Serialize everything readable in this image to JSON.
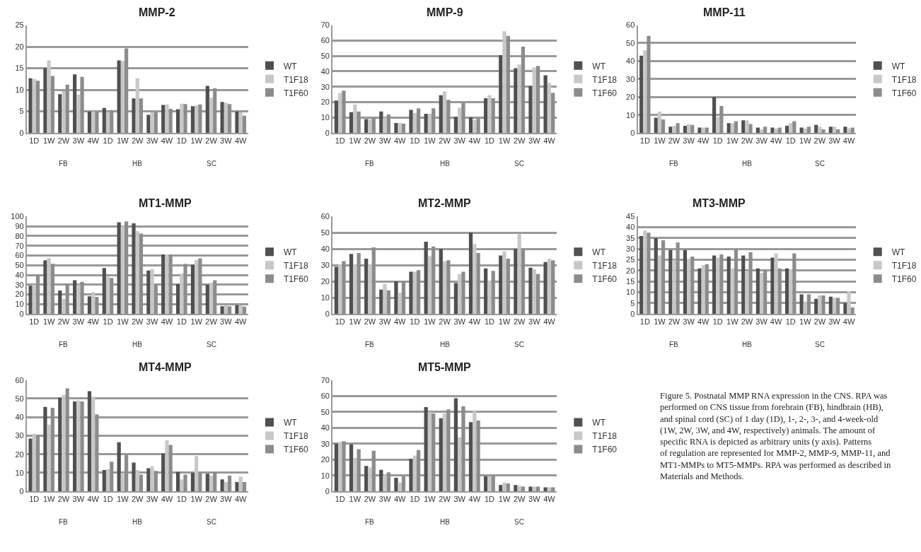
{
  "chart_data": [
    {
      "type": "bar",
      "title": "MMP-2",
      "categories": [
        "1D",
        "1W",
        "2W",
        "3W",
        "4W",
        "1D",
        "1W",
        "2W",
        "3W",
        "4W",
        "1D",
        "1W",
        "2W",
        "3W",
        "4W"
      ],
      "annotations": [
        "FB",
        "HB",
        "SC"
      ],
      "ylim": [
        0,
        25
      ],
      "yticks": [
        0,
        5,
        10,
        15,
        20,
        25
      ],
      "grid": "y",
      "legend": "right",
      "series": [
        {
          "name": "WT",
          "color": "#505050",
          "values": [
            12.7,
            15,
            9,
            13.6,
            5,
            5.8,
            16.8,
            8,
            4.2,
            6.5,
            5.5,
            6.2,
            10.9,
            7.2,
            5
          ]
        },
        {
          "name": "T1F18",
          "color": "#c8c8c8",
          "values": [
            12.5,
            16.8,
            9.7,
            8.9,
            5,
            4.8,
            16.7,
            12.7,
            4.8,
            6.6,
            6.8,
            6.4,
            8.2,
            7,
            4.8
          ]
        },
        {
          "name": "T1F60",
          "color": "#8c8c8c",
          "values": [
            12.1,
            13.2,
            11.2,
            13,
            5,
            5.3,
            19.6,
            8,
            4.8,
            5.6,
            6.7,
            6.6,
            10.4,
            6.7,
            4
          ]
        }
      ]
    },
    {
      "type": "bar",
      "title": "MMP-9",
      "categories": [
        "1D",
        "1W",
        "2W",
        "3W",
        "4W",
        "1D",
        "1W",
        "2W",
        "3W",
        "4W",
        "1D",
        "1W",
        "2W",
        "3W",
        "4W"
      ],
      "annotations": [
        "FB",
        "HB",
        "SC"
      ],
      "ylim": [
        0,
        70
      ],
      "yticks": [
        0,
        10,
        20,
        30,
        40,
        50,
        60,
        70
      ],
      "grid": "y",
      "legend": "right",
      "series": [
        {
          "name": "WT",
          "color": "#505050",
          "values": [
            21,
            13.5,
            9,
            14,
            6.5,
            15,
            12.5,
            24.5,
            10.5,
            10,
            22.5,
            50.5,
            42,
            30.5,
            37.5
          ]
        },
        {
          "name": "T1F18",
          "color": "#c8c8c8",
          "values": [
            26,
            18.5,
            9,
            10,
            6.5,
            13,
            12.5,
            27,
            16.5,
            8.5,
            24.5,
            66,
            44.5,
            42.5,
            32.5
          ]
        },
        {
          "name": "T1F60",
          "color": "#8c8c8c",
          "values": [
            27.5,
            14,
            10,
            12,
            6,
            16,
            16,
            21.5,
            19.5,
            10,
            22.5,
            63,
            56,
            43.5,
            26
          ]
        }
      ]
    },
    {
      "type": "bar",
      "title": "MMP-11",
      "categories": [
        "1D",
        "1W",
        "2W",
        "3W",
        "4W",
        "1D",
        "1W",
        "2W",
        "3W",
        "4W",
        "1D",
        "1W",
        "2W",
        "3W",
        "4W"
      ],
      "annotations": [
        "FB",
        "HB",
        "SC"
      ],
      "ylim": [
        0,
        60
      ],
      "yticks": [
        0,
        10,
        20,
        30,
        40,
        50,
        60
      ],
      "grid": "y",
      "legend": "right",
      "series": [
        {
          "name": "WT",
          "color": "#505050",
          "values": [
            43,
            8.5,
            3.5,
            4,
            3,
            20,
            5.5,
            7,
            3,
            3,
            4,
            3,
            4.5,
            3.5,
            3.5
          ]
        },
        {
          "name": "T1F18",
          "color": "#c8c8c8",
          "values": [
            46,
            12,
            4,
            5,
            3,
            9,
            5.5,
            7,
            2,
            2.5,
            5.5,
            2.5,
            3.5,
            3.5,
            2.5
          ]
        },
        {
          "name": "T1F60",
          "color": "#8c8c8c",
          "values": [
            54,
            7.5,
            5.5,
            4.5,
            3,
            15,
            6.5,
            5,
            3.5,
            3,
            6.5,
            3.5,
            2,
            2,
            3
          ]
        }
      ]
    },
    {
      "type": "bar",
      "title": "MT1-MMP",
      "categories": [
        "1D",
        "1W",
        "2W",
        "3W",
        "4W",
        "1D",
        "1W",
        "2W",
        "3W",
        "4W",
        "1D",
        "1W",
        "2W",
        "3W",
        "4W"
      ],
      "annotations": [
        "FB",
        "HB",
        "SC"
      ],
      "ylim": [
        0,
        100
      ],
      "yticks": [
        0,
        10,
        20,
        30,
        40,
        50,
        60,
        70,
        80,
        90,
        100
      ],
      "grid": "y",
      "legend": "right",
      "series": [
        {
          "name": "WT",
          "color": "#505050",
          "values": [
            29,
            55,
            24,
            34.5,
            18,
            47,
            94,
            93,
            44.5,
            61,
            30.5,
            50.5,
            30,
            8,
            9
          ]
        },
        {
          "name": "T1F18",
          "color": "#c8c8c8",
          "values": [
            30,
            57.5,
            15.5,
            30,
            22.5,
            38,
            90,
            85,
            46,
            61,
            41.5,
            55.5,
            32,
            9,
            9
          ]
        },
        {
          "name": "T1F60",
          "color": "#8c8c8c",
          "values": [
            40,
            51.5,
            31,
            33,
            17.5,
            37,
            95,
            82.5,
            30,
            61,
            51.5,
            57,
            34.5,
            8,
            7.5
          ]
        }
      ]
    },
    {
      "type": "bar",
      "title": "MT2-MMP",
      "categories": [
        "1D",
        "1W",
        "2W",
        "3W",
        "4W",
        "1D",
        "1W",
        "2W",
        "3W",
        "4W",
        "1D",
        "1W",
        "2W",
        "3W",
        "4W"
      ],
      "annotations": [
        "FB",
        "HB",
        "SC"
      ],
      "ylim": [
        0,
        60
      ],
      "yticks": [
        0,
        10,
        20,
        30,
        40,
        50,
        60
      ],
      "grid": "y",
      "legend": "right",
      "series": [
        {
          "name": "WT",
          "color": "#505050",
          "values": [
            29,
            37,
            34,
            15,
            20,
            26,
            44.5,
            40,
            19,
            50,
            28,
            36,
            40,
            28.5,
            32
          ]
        },
        {
          "name": "T1F18",
          "color": "#c8c8c8",
          "values": [
            30.5,
            30.5,
            30.5,
            18.5,
            13,
            26,
            35.5,
            32.5,
            24.5,
            43,
            20.5,
            38.5,
            49.5,
            27.5,
            34
          ]
        },
        {
          "name": "T1F60",
          "color": "#8c8c8c",
          "values": [
            32.5,
            37.5,
            41,
            14.5,
            20,
            27,
            41.5,
            33,
            26,
            37.5,
            26.5,
            34,
            40,
            24.5,
            33
          ]
        }
      ]
    },
    {
      "type": "bar",
      "title": "MT3-MMP",
      "categories": [
        "1D",
        "1W",
        "2W",
        "3W",
        "4W",
        "1D",
        "1W",
        "2W",
        "3W",
        "4W",
        "1D",
        "1W",
        "2W",
        "3W",
        "4W"
      ],
      "annotations": [
        "FB",
        "HB",
        "SC"
      ],
      "ylim": [
        0,
        45
      ],
      "yticks": [
        0,
        5,
        10,
        15,
        20,
        25,
        30,
        35,
        40,
        45
      ],
      "grid": "y",
      "legend": "right",
      "series": [
        {
          "name": "WT",
          "color": "#505050",
          "values": [
            36,
            35,
            29.5,
            29.5,
            21,
            27,
            26.5,
            27,
            21,
            26,
            21,
            9,
            7,
            8,
            5
          ]
        },
        {
          "name": "T1F18",
          "color": "#c8c8c8",
          "values": [
            38.5,
            27,
            25,
            25.5,
            22.5,
            26,
            21,
            20,
            19,
            28,
            20.5,
            5.5,
            8.5,
            7.5,
            10.5
          ]
        },
        {
          "name": "T1F60",
          "color": "#8c8c8c",
          "values": [
            37.5,
            34,
            33,
            26.5,
            23,
            27.5,
            30,
            28.5,
            20.5,
            21,
            28,
            9,
            8.5,
            7.5,
            3
          ]
        }
      ]
    },
    {
      "type": "bar",
      "title": "MT4-MMP",
      "categories": [
        "1D",
        "1W",
        "2W",
        "3W",
        "4W",
        "1D",
        "1W",
        "2W",
        "3W",
        "4W",
        "1D",
        "1W",
        "2W",
        "3W",
        "4W"
      ],
      "annotations": [
        "FB",
        "HB",
        "SC"
      ],
      "ylim": [
        0,
        60
      ],
      "yticks": [
        0,
        10,
        20,
        30,
        40,
        50,
        60
      ],
      "grid": "y",
      "legend": "right",
      "series": [
        {
          "name": "WT",
          "color": "#505050",
          "values": [
            28.5,
            45.5,
            50.5,
            48.5,
            54,
            11.5,
            26.5,
            15.5,
            12.5,
            20.5,
            10.5,
            10,
            9.5,
            6.5,
            5
          ]
        },
        {
          "name": "T1F18",
          "color": "#c8c8c8",
          "values": [
            31,
            36,
            52,
            49,
            51,
            12,
            10,
            11.5,
            13.5,
            27.5,
            6.5,
            19,
            8.5,
            5,
            8
          ]
        },
        {
          "name": "T1F60",
          "color": "#8c8c8c",
          "values": [
            30.5,
            45,
            55.5,
            48.5,
            41.5,
            16,
            20,
            9,
            11,
            25,
            9,
            10,
            10.5,
            8.5,
            5
          ]
        }
      ]
    },
    {
      "type": "bar",
      "title": "MT5-MMP",
      "categories": [
        "1D",
        "1W",
        "2W",
        "3W",
        "4W",
        "1D",
        "1W",
        "2W",
        "3W",
        "4W",
        "1D",
        "1W",
        "2W",
        "3W",
        "4W"
      ],
      "annotations": [
        "FB",
        "HB",
        "SC"
      ],
      "ylim": [
        0,
        70
      ],
      "yticks": [
        0,
        10,
        20,
        30,
        40,
        50,
        60,
        70
      ],
      "grid": "y",
      "legend": "right",
      "series": [
        {
          "name": "WT",
          "color": "#505050",
          "values": [
            30,
            29.5,
            16,
            13.5,
            8.5,
            20.5,
            53,
            46,
            58.5,
            43.5,
            9.5,
            4,
            4,
            3,
            2.5
          ]
        },
        {
          "name": "T1F18",
          "color": "#c8c8c8",
          "values": [
            31,
            21,
            15,
            10.5,
            5.5,
            22.5,
            50,
            49,
            34,
            50.5,
            9.5,
            5.5,
            3.5,
            3,
            2.5
          ]
        },
        {
          "name": "T1F60",
          "color": "#8c8c8c",
          "values": [
            31.5,
            26.5,
            25.5,
            12,
            9.5,
            26,
            49,
            51.5,
            53.5,
            44.5,
            10,
            5,
            3,
            3,
            2.5
          ]
        }
      ]
    },
    {
      "type": "other",
      "annotations": [
        "Figure 5. Postnatal MMP RNA expression in the CNS. RPA was performed on CNS tissue from forebrain (FB), hindbrain (HB), and spinal cord (SC) of 1 day (1D), 1-, 2-, 3-, and 4-week-old (1W, 2W, 3W, and 4W, respectively) animals. The amount of specific RNA is depicted as arbitrary units (y axis). Patterns of regulation are represented for MMP-2, MMP-9, MMP-11, and MT1-MMPs to MT5-MMPs. RPA was performed as described in Materials and Methods."
      ]
    }
  ]
}
